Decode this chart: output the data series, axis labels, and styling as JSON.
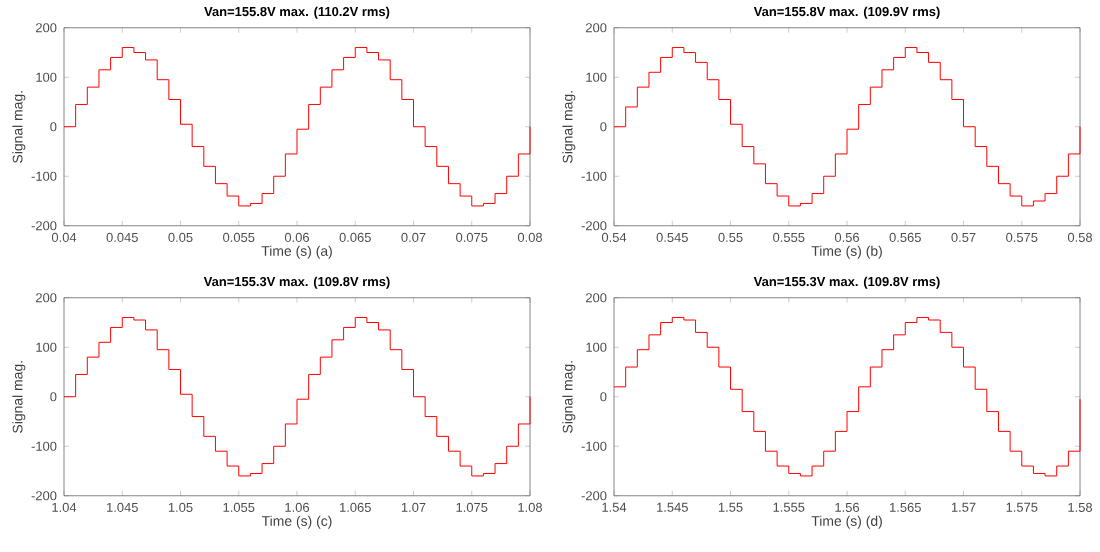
{
  "chart_data": [
    {
      "type": "step",
      "title": "Van=155.8V max. (110.2V rms)",
      "xlabel": "Time (s) (a)",
      "ylabel": "Signal mag.",
      "color": "#ff0000",
      "xlim": [
        0.04,
        0.08
      ],
      "xticks": [
        0.04,
        0.045,
        0.05,
        0.055,
        0.06,
        0.065,
        0.07,
        0.075,
        0.08
      ],
      "ylim": [
        -200,
        200
      ],
      "yticks": [
        -200,
        -100,
        0,
        100,
        200
      ],
      "x": [
        0.04,
        0.041,
        0.042,
        0.043,
        0.044,
        0.045,
        0.046,
        0.047,
        0.048,
        0.049,
        0.05,
        0.051,
        0.052,
        0.053,
        0.054,
        0.055,
        0.056,
        0.057,
        0.058,
        0.059,
        0.06,
        0.061,
        0.062,
        0.063,
        0.064,
        0.065,
        0.066,
        0.067,
        0.068,
        0.069,
        0.07,
        0.071,
        0.072,
        0.073,
        0.074,
        0.075,
        0.076,
        0.077,
        0.078,
        0.079,
        0.08
      ],
      "values": [
        0,
        45,
        80,
        115,
        140,
        160,
        150,
        135,
        95,
        55,
        5,
        -40,
        -80,
        -115,
        -140,
        -160,
        -155,
        -135,
        -100,
        -55,
        -5,
        45,
        80,
        115,
        140,
        160,
        150,
        135,
        95,
        55,
        0,
        -40,
        -80,
        -115,
        -140,
        -160,
        -155,
        -135,
        -100,
        -55,
        0
      ]
    },
    {
      "type": "step",
      "title": "Van=155.8V max. (109.9V rms)",
      "xlabel": "Time (s) (b)",
      "ylabel": "Signal mag.",
      "color": "#ff0000",
      "xlim": [
        0.54,
        0.58
      ],
      "xticks": [
        0.54,
        0.545,
        0.55,
        0.555,
        0.56,
        0.565,
        0.57,
        0.575,
        0.58
      ],
      "ylim": [
        -200,
        200
      ],
      "yticks": [
        -200,
        -100,
        0,
        100,
        200
      ],
      "x": [
        0.54,
        0.541,
        0.542,
        0.543,
        0.544,
        0.545,
        0.546,
        0.547,
        0.548,
        0.549,
        0.55,
        0.551,
        0.552,
        0.553,
        0.554,
        0.555,
        0.556,
        0.557,
        0.558,
        0.559,
        0.56,
        0.561,
        0.562,
        0.563,
        0.564,
        0.565,
        0.566,
        0.567,
        0.568,
        0.569,
        0.57,
        0.571,
        0.572,
        0.573,
        0.574,
        0.575,
        0.576,
        0.577,
        0.578,
        0.579,
        0.58
      ],
      "values": [
        0,
        40,
        80,
        110,
        140,
        160,
        150,
        130,
        95,
        55,
        5,
        -40,
        -75,
        -115,
        -140,
        -160,
        -155,
        -135,
        -100,
        -55,
        -5,
        45,
        80,
        115,
        140,
        160,
        150,
        130,
        95,
        55,
        0,
        -40,
        -80,
        -115,
        -140,
        -160,
        -150,
        -135,
        -100,
        -55,
        0
      ]
    },
    {
      "type": "step",
      "title": "Van=155.3V max. (109.8V rms)",
      "xlabel": "Time (s) (c)",
      "ylabel": "Signal mag.",
      "color": "#ff0000",
      "xlim": [
        1.04,
        1.08
      ],
      "xticks": [
        1.04,
        1.045,
        1.05,
        1.055,
        1.06,
        1.065,
        1.07,
        1.075,
        1.08
      ],
      "ylim": [
        -200,
        200
      ],
      "yticks": [
        -200,
        -100,
        0,
        100,
        200
      ],
      "x": [
        1.04,
        1.041,
        1.042,
        1.043,
        1.044,
        1.045,
        1.046,
        1.047,
        1.048,
        1.049,
        1.05,
        1.051,
        1.052,
        1.053,
        1.054,
        1.055,
        1.056,
        1.057,
        1.058,
        1.059,
        1.06,
        1.061,
        1.062,
        1.063,
        1.064,
        1.065,
        1.066,
        1.067,
        1.068,
        1.069,
        1.07,
        1.071,
        1.072,
        1.073,
        1.074,
        1.075,
        1.076,
        1.077,
        1.078,
        1.079,
        1.08
      ],
      "values": [
        0,
        45,
        80,
        110,
        140,
        160,
        155,
        135,
        95,
        55,
        5,
        -40,
        -80,
        -110,
        -140,
        -160,
        -155,
        -135,
        -100,
        -55,
        -5,
        45,
        80,
        115,
        140,
        160,
        150,
        135,
        95,
        55,
        0,
        -40,
        -80,
        -110,
        -140,
        -160,
        -155,
        -135,
        -100,
        -55,
        0
      ]
    },
    {
      "type": "step",
      "title": "Van=155.3V max. (109.8V rms)",
      "xlabel": "Time (s) (d)",
      "ylabel": "Signal mag.",
      "color": "#ff0000",
      "xlim": [
        1.54,
        1.58
      ],
      "xticks": [
        1.54,
        1.545,
        1.55,
        1.555,
        1.56,
        1.565,
        1.57,
        1.575,
        1.58
      ],
      "ylim": [
        -200,
        200
      ],
      "yticks": [
        -200,
        -100,
        0,
        100,
        200
      ],
      "x": [
        1.54,
        1.541,
        1.542,
        1.543,
        1.544,
        1.545,
        1.546,
        1.547,
        1.548,
        1.549,
        1.55,
        1.551,
        1.552,
        1.553,
        1.554,
        1.555,
        1.556,
        1.557,
        1.558,
        1.559,
        1.56,
        1.561,
        1.562,
        1.563,
        1.564,
        1.565,
        1.566,
        1.567,
        1.568,
        1.569,
        1.57,
        1.571,
        1.572,
        1.573,
        1.574,
        1.575,
        1.576,
        1.577,
        1.578,
        1.579,
        1.58
      ],
      "values": [
        20,
        60,
        95,
        125,
        150,
        160,
        155,
        130,
        100,
        60,
        15,
        -30,
        -70,
        -110,
        -140,
        -155,
        -160,
        -140,
        -110,
        -70,
        -30,
        20,
        60,
        95,
        125,
        150,
        160,
        155,
        130,
        100,
        60,
        15,
        -30,
        -70,
        -110,
        -140,
        -155,
        -160,
        -140,
        -110,
        -5
      ]
    }
  ]
}
